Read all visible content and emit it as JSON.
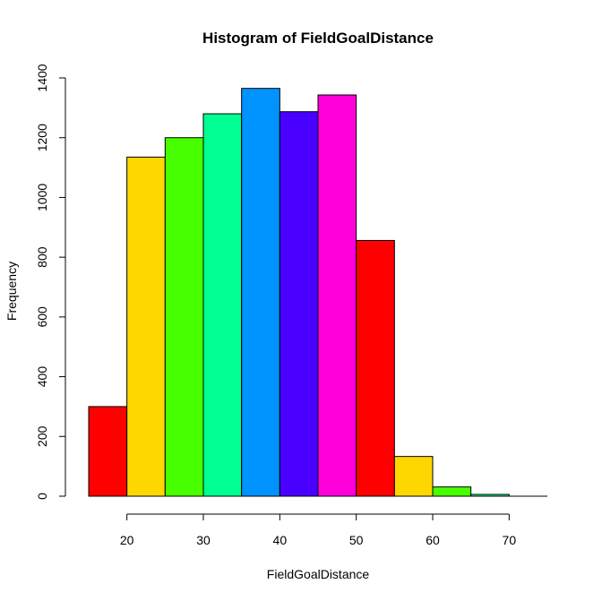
{
  "chart_data": {
    "type": "bar",
    "title": "Histogram of FieldGoalDistance",
    "xlabel": "FieldGoalDistance",
    "ylabel": "Frequency",
    "bin_edges": [
      15,
      20,
      25,
      30,
      35,
      40,
      45,
      50,
      55,
      60,
      65,
      70,
      75
    ],
    "values": [
      300,
      1135,
      1200,
      1280,
      1365,
      1287,
      1343,
      856,
      133,
      31,
      6,
      0
    ],
    "bar_colors": [
      "#FF0000",
      "#FFD700",
      "#48FF00",
      "#00FF92",
      "#0092FF",
      "#4900FF",
      "#FF00DB",
      "#FF0000",
      "#FFD700",
      "#48FF00",
      "#00FF92",
      "#0092FF"
    ],
    "x_ticks": [
      "20",
      "30",
      "40",
      "50",
      "60",
      "70"
    ],
    "y_ticks": [
      "0",
      "200",
      "400",
      "600",
      "800",
      "1000",
      "1200",
      "1400"
    ],
    "xlim": [
      15,
      75
    ],
    "ylim": [
      0,
      1400
    ],
    "grid": false,
    "legend": "none"
  }
}
